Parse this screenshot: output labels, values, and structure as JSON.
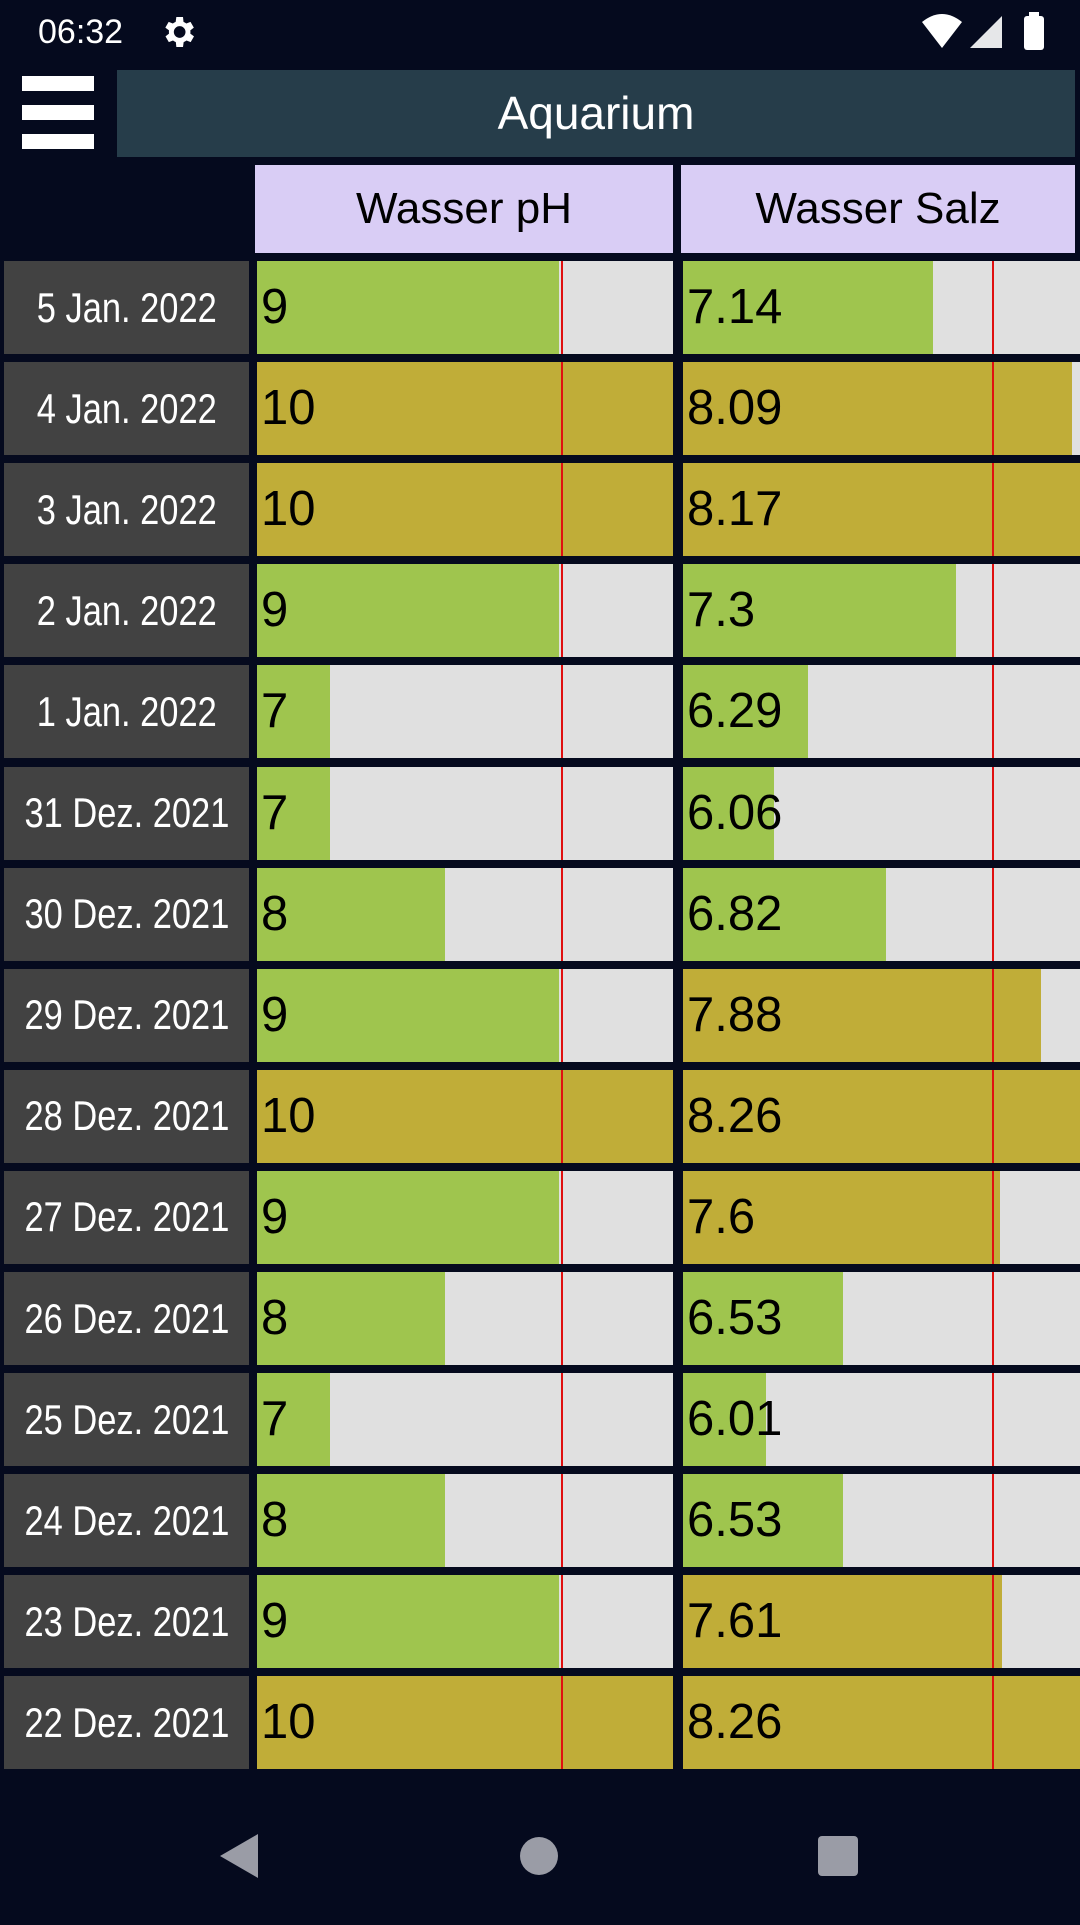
{
  "status_bar": {
    "time": "06:32"
  },
  "header": {
    "title": "Aquarium"
  },
  "table": {
    "columns": [
      "Wasser pH",
      "Wasser Salz"
    ],
    "rows": [
      {
        "date": "5 Jan. 2022",
        "values": [
          9,
          7.14
        ]
      },
      {
        "date": "4 Jan. 2022",
        "values": [
          10,
          8.09
        ]
      },
      {
        "date": "3 Jan. 2022",
        "values": [
          10,
          8.17
        ]
      },
      {
        "date": "2 Jan. 2022",
        "values": [
          9,
          7.3
        ]
      },
      {
        "date": "1 Jan. 2022",
        "values": [
          7,
          6.29
        ]
      },
      {
        "date": "31 Dez. 2021",
        "values": [
          7,
          6.06
        ]
      },
      {
        "date": "30 Dez. 2021",
        "values": [
          8,
          6.82
        ]
      },
      {
        "date": "29 Dez. 2021",
        "values": [
          9,
          7.88
        ]
      },
      {
        "date": "28 Dez. 2021",
        "values": [
          10,
          8.26
        ]
      },
      {
        "date": "27 Dez. 2021",
        "values": [
          9,
          7.6
        ]
      },
      {
        "date": "26 Dez. 2021",
        "values": [
          8,
          6.53
        ]
      },
      {
        "date": "25 Dez. 2021",
        "values": [
          7,
          6.01
        ]
      },
      {
        "date": "24 Dez. 2021",
        "values": [
          8,
          6.53
        ]
      },
      {
        "date": "23 Dez. 2021",
        "values": [
          9,
          7.61
        ]
      },
      {
        "date": "22 Dez. 2021",
        "values": [
          10,
          8.26
        ]
      }
    ]
  }
}
